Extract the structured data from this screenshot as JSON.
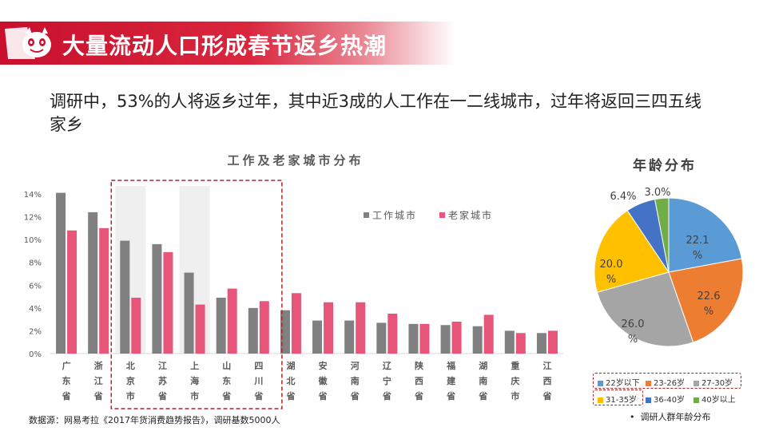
{
  "header": {
    "title": "大量流动人口形成春节返乡热潮"
  },
  "subtitle": "调研中，53%的人将返乡过年，其中近3成的人工作在一二线城市，过年将返回三四五线家乡",
  "source": "数据源：网易考拉《2017年货消费趋势报告》，调研基数5000人",
  "pie_note": "调研人群年龄分布",
  "colors": {
    "brand": "#c8102e",
    "work": "#808080",
    "home": "#e8557a",
    "highlight_box": "#b22222"
  },
  "chart_data": [
    {
      "type": "bar",
      "title": "工作及老家城市分布",
      "categories": [
        "广东省",
        "浙江省",
        "北京市",
        "江苏省",
        "上海市",
        "山东省",
        "四川省",
        "湖北省",
        "安徽省",
        "河南省",
        "辽宁省",
        "陕西省",
        "福建省",
        "湖南省",
        "重庆市",
        "江西省"
      ],
      "series": [
        {
          "name": "工作城市",
          "values": [
            14.1,
            12.4,
            9.9,
            9.6,
            7.1,
            4.9,
            4.0,
            3.8,
            2.9,
            2.9,
            2.7,
            2.6,
            2.5,
            2.4,
            2.0,
            1.8
          ]
        },
        {
          "name": "老家城市",
          "values": [
            10.8,
            11.0,
            4.9,
            8.9,
            4.3,
            5.7,
            4.6,
            5.3,
            4.5,
            4.5,
            3.5,
            2.6,
            2.8,
            3.4,
            1.8,
            2.0
          ]
        }
      ],
      "ylim": [
        0,
        14
      ],
      "yticks": [
        "0%",
        "2%",
        "4%",
        "6%",
        "8%",
        "10%",
        "12%",
        "14%"
      ],
      "legend": [
        "工作城市",
        "老家城市"
      ],
      "highlighted_categories": [
        "北京市",
        "江苏省",
        "上海市",
        "山东省",
        "四川省"
      ],
      "shaded_categories": [
        "北京市",
        "上海市"
      ]
    },
    {
      "type": "pie",
      "title": "年龄分布",
      "labels": [
        "22岁以下",
        "23-26岁",
        "27-30岁",
        "31-35岁",
        "36-40岁",
        "40岁以上"
      ],
      "values": [
        22.1,
        22.6,
        26.0,
        20.0,
        6.4,
        3.0
      ],
      "data_labels": [
        "22.1 %",
        "22.6 %",
        "26.0 %",
        "20.0 %",
        "6.4%",
        "3.0%"
      ],
      "colors": [
        "#5b9bd5",
        "#ed7d31",
        "#a5a5a5",
        "#ffc000",
        "#4472c4",
        "#70ad47"
      ],
      "highlighted_labels": [
        "22岁以下",
        "23-26岁",
        "27-30岁",
        "31-35岁"
      ]
    }
  ]
}
